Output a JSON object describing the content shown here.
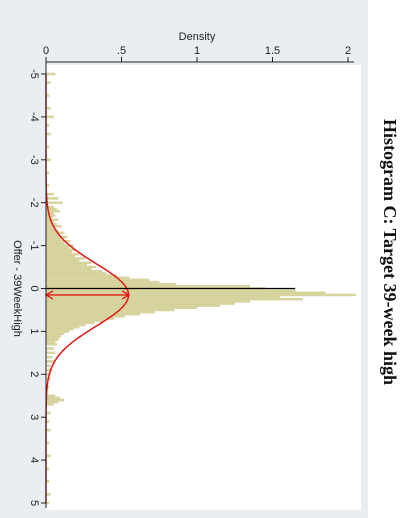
{
  "chart_data": {
    "type": "bar",
    "title": "Histogram C: Target 39-week high",
    "xlabel": "Offer - 39WeekHigh",
    "ylabel": "Density",
    "xlim": [
      -5.2,
      5.2
    ],
    "ylim": [
      0,
      2.1
    ],
    "x_ticks": [
      -5,
      -4,
      -3,
      -2,
      -1,
      0,
      1,
      2,
      3,
      4,
      5
    ],
    "x_tick_labels": [
      "-5",
      "-4",
      "-3",
      "-2",
      "-1",
      "0",
      "1",
      "2",
      "3",
      "4",
      "5"
    ],
    "y_ticks": [
      0,
      0.5,
      1,
      1.5,
      2
    ],
    "y_tick_labels": [
      "0",
      ".5",
      "1",
      "1.5",
      "2"
    ],
    "orientation": "rotated-90-clockwise",
    "grid": false,
    "legend": "none",
    "colors": {
      "plot_background": "#e9eef2",
      "bar_fill": "#d9d6a2",
      "bar_stroke": "#c8c48a",
      "normal_curve": "#e01818",
      "mean_line": "#e01818",
      "zero_line": "#000000",
      "axis": "#222222"
    },
    "histogram": {
      "bin_width": 0.05,
      "bins": [
        {
          "x": -5.0,
          "density": 0.06
        },
        {
          "x": -4.8,
          "density": 0.03
        },
        {
          "x": -4.5,
          "density": 0.02
        },
        {
          "x": -4.2,
          "density": 0.03
        },
        {
          "x": -4.0,
          "density": 0.05
        },
        {
          "x": -3.8,
          "density": 0.02
        },
        {
          "x": -3.6,
          "density": 0.03
        },
        {
          "x": -3.3,
          "density": 0.02
        },
        {
          "x": -3.0,
          "density": 0.03
        },
        {
          "x": -2.7,
          "density": 0.02
        },
        {
          "x": -2.4,
          "density": 0.02
        },
        {
          "x": -2.2,
          "density": 0.05
        },
        {
          "x": -2.1,
          "density": 0.08
        },
        {
          "x": -2.0,
          "density": 0.11
        },
        {
          "x": -1.9,
          "density": 0.05
        },
        {
          "x": -1.85,
          "density": 0.07
        },
        {
          "x": -1.8,
          "density": 0.09
        },
        {
          "x": -1.75,
          "density": 0.05
        },
        {
          "x": -1.7,
          "density": 0.06
        },
        {
          "x": -1.65,
          "density": 0.04
        },
        {
          "x": -1.6,
          "density": 0.08
        },
        {
          "x": -1.55,
          "density": 0.05
        },
        {
          "x": -1.5,
          "density": 0.07
        },
        {
          "x": -1.45,
          "density": 0.1
        },
        {
          "x": -1.4,
          "density": 0.06
        },
        {
          "x": -1.35,
          "density": 0.08
        },
        {
          "x": -1.3,
          "density": 0.12
        },
        {
          "x": -1.25,
          "density": 0.09
        },
        {
          "x": -1.2,
          "density": 0.14
        },
        {
          "x": -1.15,
          "density": 0.1
        },
        {
          "x": -1.1,
          "density": 0.16
        },
        {
          "x": -1.05,
          "density": 0.12
        },
        {
          "x": -1.0,
          "density": 0.18
        },
        {
          "x": -0.95,
          "density": 0.15
        },
        {
          "x": -0.9,
          "density": 0.2
        },
        {
          "x": -0.85,
          "density": 0.17
        },
        {
          "x": -0.8,
          "density": 0.22
        },
        {
          "x": -0.75,
          "density": 0.19
        },
        {
          "x": -0.7,
          "density": 0.26
        },
        {
          "x": -0.65,
          "density": 0.22
        },
        {
          "x": -0.6,
          "density": 0.3
        },
        {
          "x": -0.55,
          "density": 0.27
        },
        {
          "x": -0.5,
          "density": 0.33
        },
        {
          "x": -0.45,
          "density": 0.3
        },
        {
          "x": -0.4,
          "density": 0.37
        },
        {
          "x": -0.35,
          "density": 0.4
        },
        {
          "x": -0.3,
          "density": 0.47
        },
        {
          "x": -0.25,
          "density": 0.55
        },
        {
          "x": -0.2,
          "density": 0.68
        },
        {
          "x": -0.15,
          "density": 0.75
        },
        {
          "x": -0.1,
          "density": 0.86
        },
        {
          "x": -0.05,
          "density": 1.35
        },
        {
          "x": 0.0,
          "density": 1.45
        },
        {
          "x": 0.05,
          "density": 1.65
        },
        {
          "x": 0.1,
          "density": 1.85
        },
        {
          "x": 0.15,
          "density": 2.05
        },
        {
          "x": 0.2,
          "density": 1.55
        },
        {
          "x": 0.25,
          "density": 1.7
        },
        {
          "x": 0.3,
          "density": 1.35
        },
        {
          "x": 0.35,
          "density": 1.25
        },
        {
          "x": 0.4,
          "density": 1.15
        },
        {
          "x": 0.45,
          "density": 1.0
        },
        {
          "x": 0.5,
          "density": 0.85
        },
        {
          "x": 0.55,
          "density": 0.72
        },
        {
          "x": 0.6,
          "density": 0.62
        },
        {
          "x": 0.65,
          "density": 0.52
        },
        {
          "x": 0.7,
          "density": 0.45
        },
        {
          "x": 0.75,
          "density": 0.38
        },
        {
          "x": 0.8,
          "density": 0.32
        },
        {
          "x": 0.85,
          "density": 0.26
        },
        {
          "x": 0.9,
          "density": 0.22
        },
        {
          "x": 0.95,
          "density": 0.18
        },
        {
          "x": 1.0,
          "density": 0.15
        },
        {
          "x": 1.05,
          "density": 0.12
        },
        {
          "x": 1.1,
          "density": 0.1
        },
        {
          "x": 1.15,
          "density": 0.09
        },
        {
          "x": 1.2,
          "density": 0.08
        },
        {
          "x": 1.25,
          "density": 0.06
        },
        {
          "x": 1.3,
          "density": 0.07
        },
        {
          "x": 1.4,
          "density": 0.05
        },
        {
          "x": 1.5,
          "density": 0.06
        },
        {
          "x": 1.6,
          "density": 0.04
        },
        {
          "x": 1.7,
          "density": 0.05
        },
        {
          "x": 1.8,
          "density": 0.03
        },
        {
          "x": 1.9,
          "density": 0.04
        },
        {
          "x": 2.0,
          "density": 0.03
        },
        {
          "x": 2.1,
          "density": 0.03
        },
        {
          "x": 2.3,
          "density": 0.02
        },
        {
          "x": 2.5,
          "density": 0.06
        },
        {
          "x": 2.55,
          "density": 0.09
        },
        {
          "x": 2.6,
          "density": 0.12
        },
        {
          "x": 2.65,
          "density": 0.08
        },
        {
          "x": 2.7,
          "density": 0.05
        },
        {
          "x": 2.9,
          "density": 0.03
        },
        {
          "x": 3.1,
          "density": 0.02
        },
        {
          "x": 3.3,
          "density": 0.03
        },
        {
          "x": 3.6,
          "density": 0.02
        },
        {
          "x": 3.9,
          "density": 0.03
        },
        {
          "x": 4.2,
          "density": 0.02
        },
        {
          "x": 4.5,
          "density": 0.02
        },
        {
          "x": 4.8,
          "density": 0.03
        },
        {
          "x": 5.0,
          "density": 0.02
        }
      ]
    },
    "normal_curve": {
      "mean": 0.15,
      "sd": 0.73
    },
    "reference_lines": [
      {
        "kind": "zero-line",
        "x": 0,
        "density_to": 1.65
      },
      {
        "kind": "mean-arrow",
        "x": 0.15,
        "density_to": 0.55
      }
    ]
  }
}
